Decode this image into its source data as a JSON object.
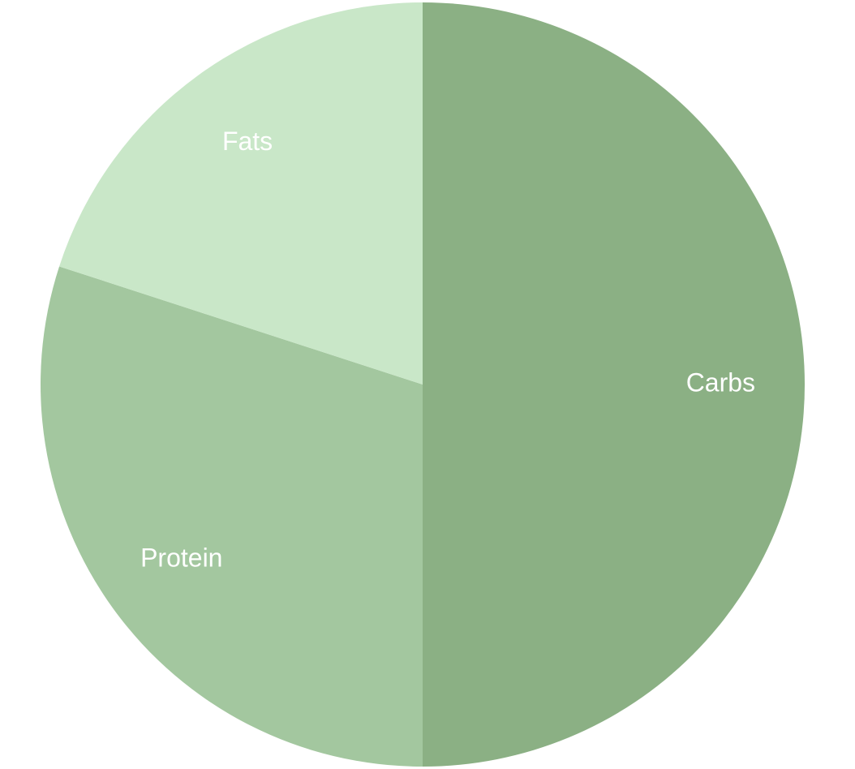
{
  "chart_data": {
    "type": "pie",
    "title": "",
    "slices": [
      {
        "label": "Carbs",
        "value": 50,
        "color": "#8bb084"
      },
      {
        "label": "Protein",
        "value": 30,
        "color": "#a3c79f"
      },
      {
        "label": "Fats",
        "value": 20,
        "color": "#c9e7c8"
      }
    ],
    "start_angle_deg": 0,
    "direction": "clockwise",
    "legend": "none",
    "label_color": "#ffffff"
  }
}
